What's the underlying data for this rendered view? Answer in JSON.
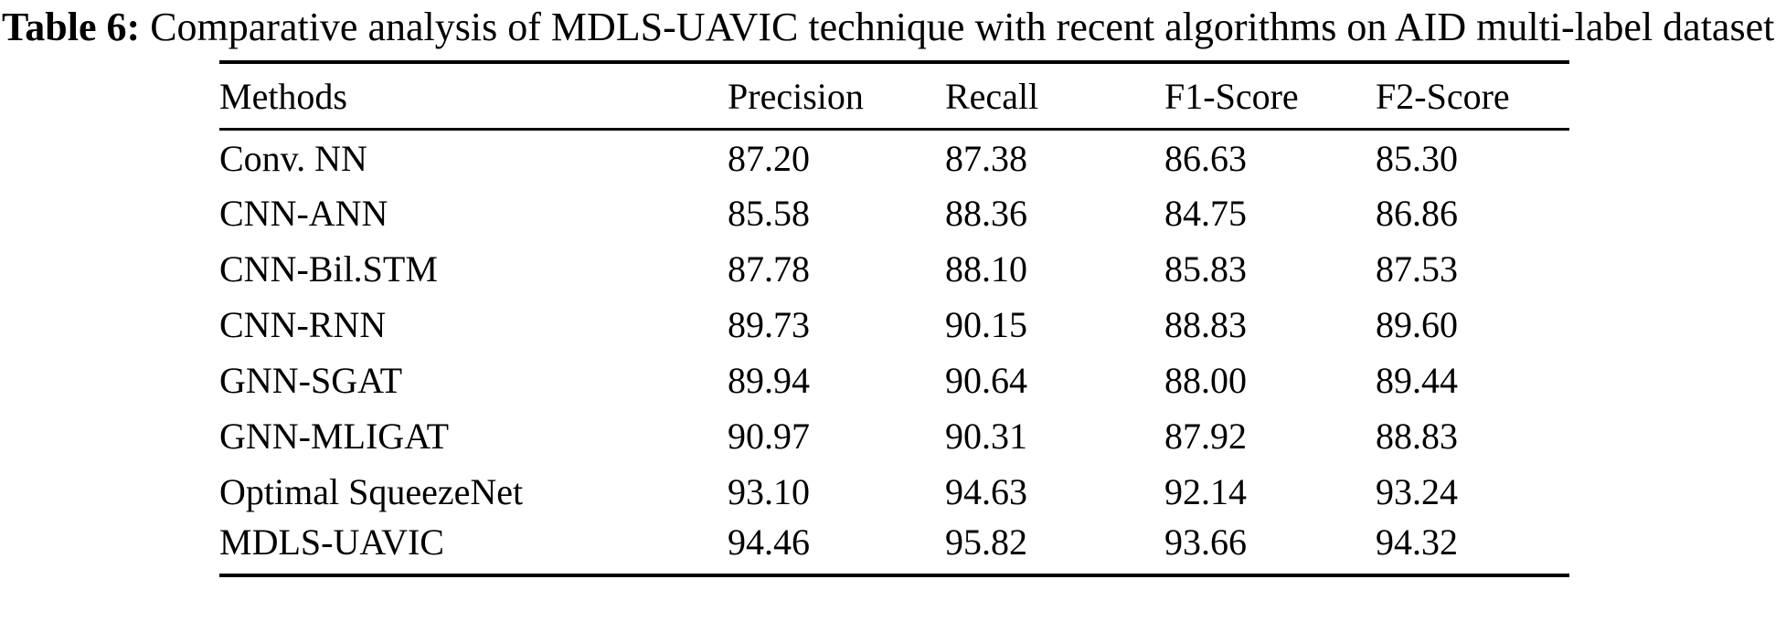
{
  "caption": {
    "label": "Table 6:",
    "text": " Comparative analysis of MDLS-UAVIC technique with recent algorithms on AID multi-label dataset"
  },
  "chart_data": {
    "type": "table",
    "columns": [
      "Methods",
      "Precision",
      "Recall",
      "F1-Score",
      "F2-Score"
    ],
    "rows": [
      [
        "Conv. NN",
        "87.20",
        "87.38",
        "86.63",
        "85.30"
      ],
      [
        "CNN-ANN",
        "85.58",
        "88.36",
        "84.75",
        "86.86"
      ],
      [
        "CNN-Bil.STM",
        "87.78",
        "88.10",
        "85.83",
        "87.53"
      ],
      [
        "CNN-RNN",
        "89.73",
        "90.15",
        "88.83",
        "89.60"
      ],
      [
        "GNN-SGAT",
        "89.94",
        "90.64",
        "88.00",
        "89.44"
      ],
      [
        "GNN-MLIGAT",
        "90.97",
        "90.31",
        "87.92",
        "88.83"
      ],
      [
        "Optimal SqueezeNet",
        "93.10",
        "94.63",
        "92.14",
        "93.24"
      ],
      [
        "MDLS-UAVIC",
        "94.46",
        "95.82",
        "93.66",
        "94.32"
      ]
    ]
  }
}
